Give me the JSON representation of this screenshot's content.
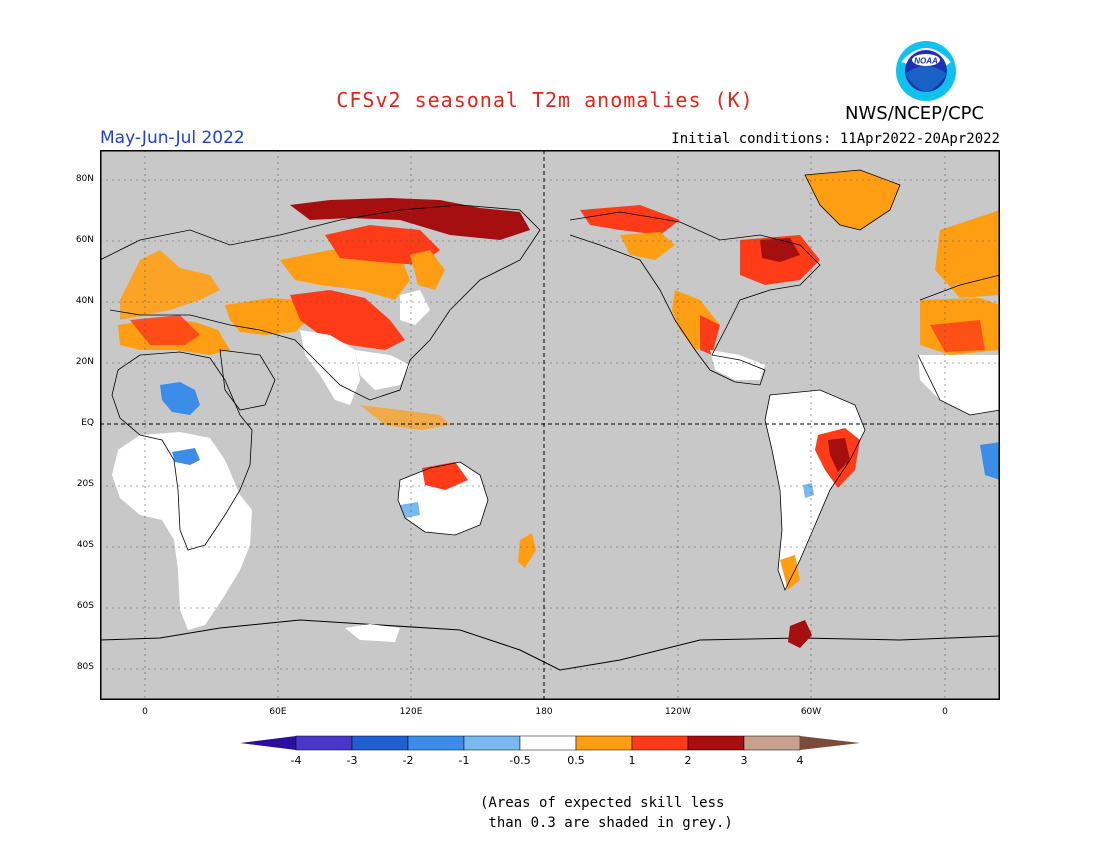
{
  "header": {
    "title": "CFSv2 seasonal T2m anomalies (K)",
    "agency": "NWS/NCEP/CPC",
    "logo_text": "NOAA",
    "period": "May-Jun-Jul 2022",
    "initial_conditions": "Initial conditions: 11Apr2022-20Apr2022"
  },
  "map": {
    "projection": "equirectangular, Pacific-centered",
    "lat_labels": [
      "80N",
      "60N",
      "40N",
      "20N",
      "EQ",
      "20S",
      "40S",
      "60S",
      "80S"
    ],
    "lon_labels": [
      "0",
      "60E",
      "120E",
      "180",
      "120W",
      "60W",
      "0"
    ],
    "background_color": "#c8c8c8",
    "grid": "dotted"
  },
  "colorbar": {
    "labels": [
      "-4",
      "-3",
      "-2",
      "-1",
      "-0.5",
      "0.5",
      "1",
      "2",
      "3",
      "4"
    ],
    "colors": [
      "#2a0fa0",
      "#4a37c8",
      "#1f5fd0",
      "#3b8de8",
      "#78b9f0",
      "#ffffff",
      "#ff9e12",
      "#ff3c17",
      "#a50f0f",
      "#c8a08e",
      "#7a4a3a"
    ]
  },
  "note": {
    "line1": "(Areas of expected skill less",
    "line2": " than 0.3 are shaded in grey.)"
  }
}
